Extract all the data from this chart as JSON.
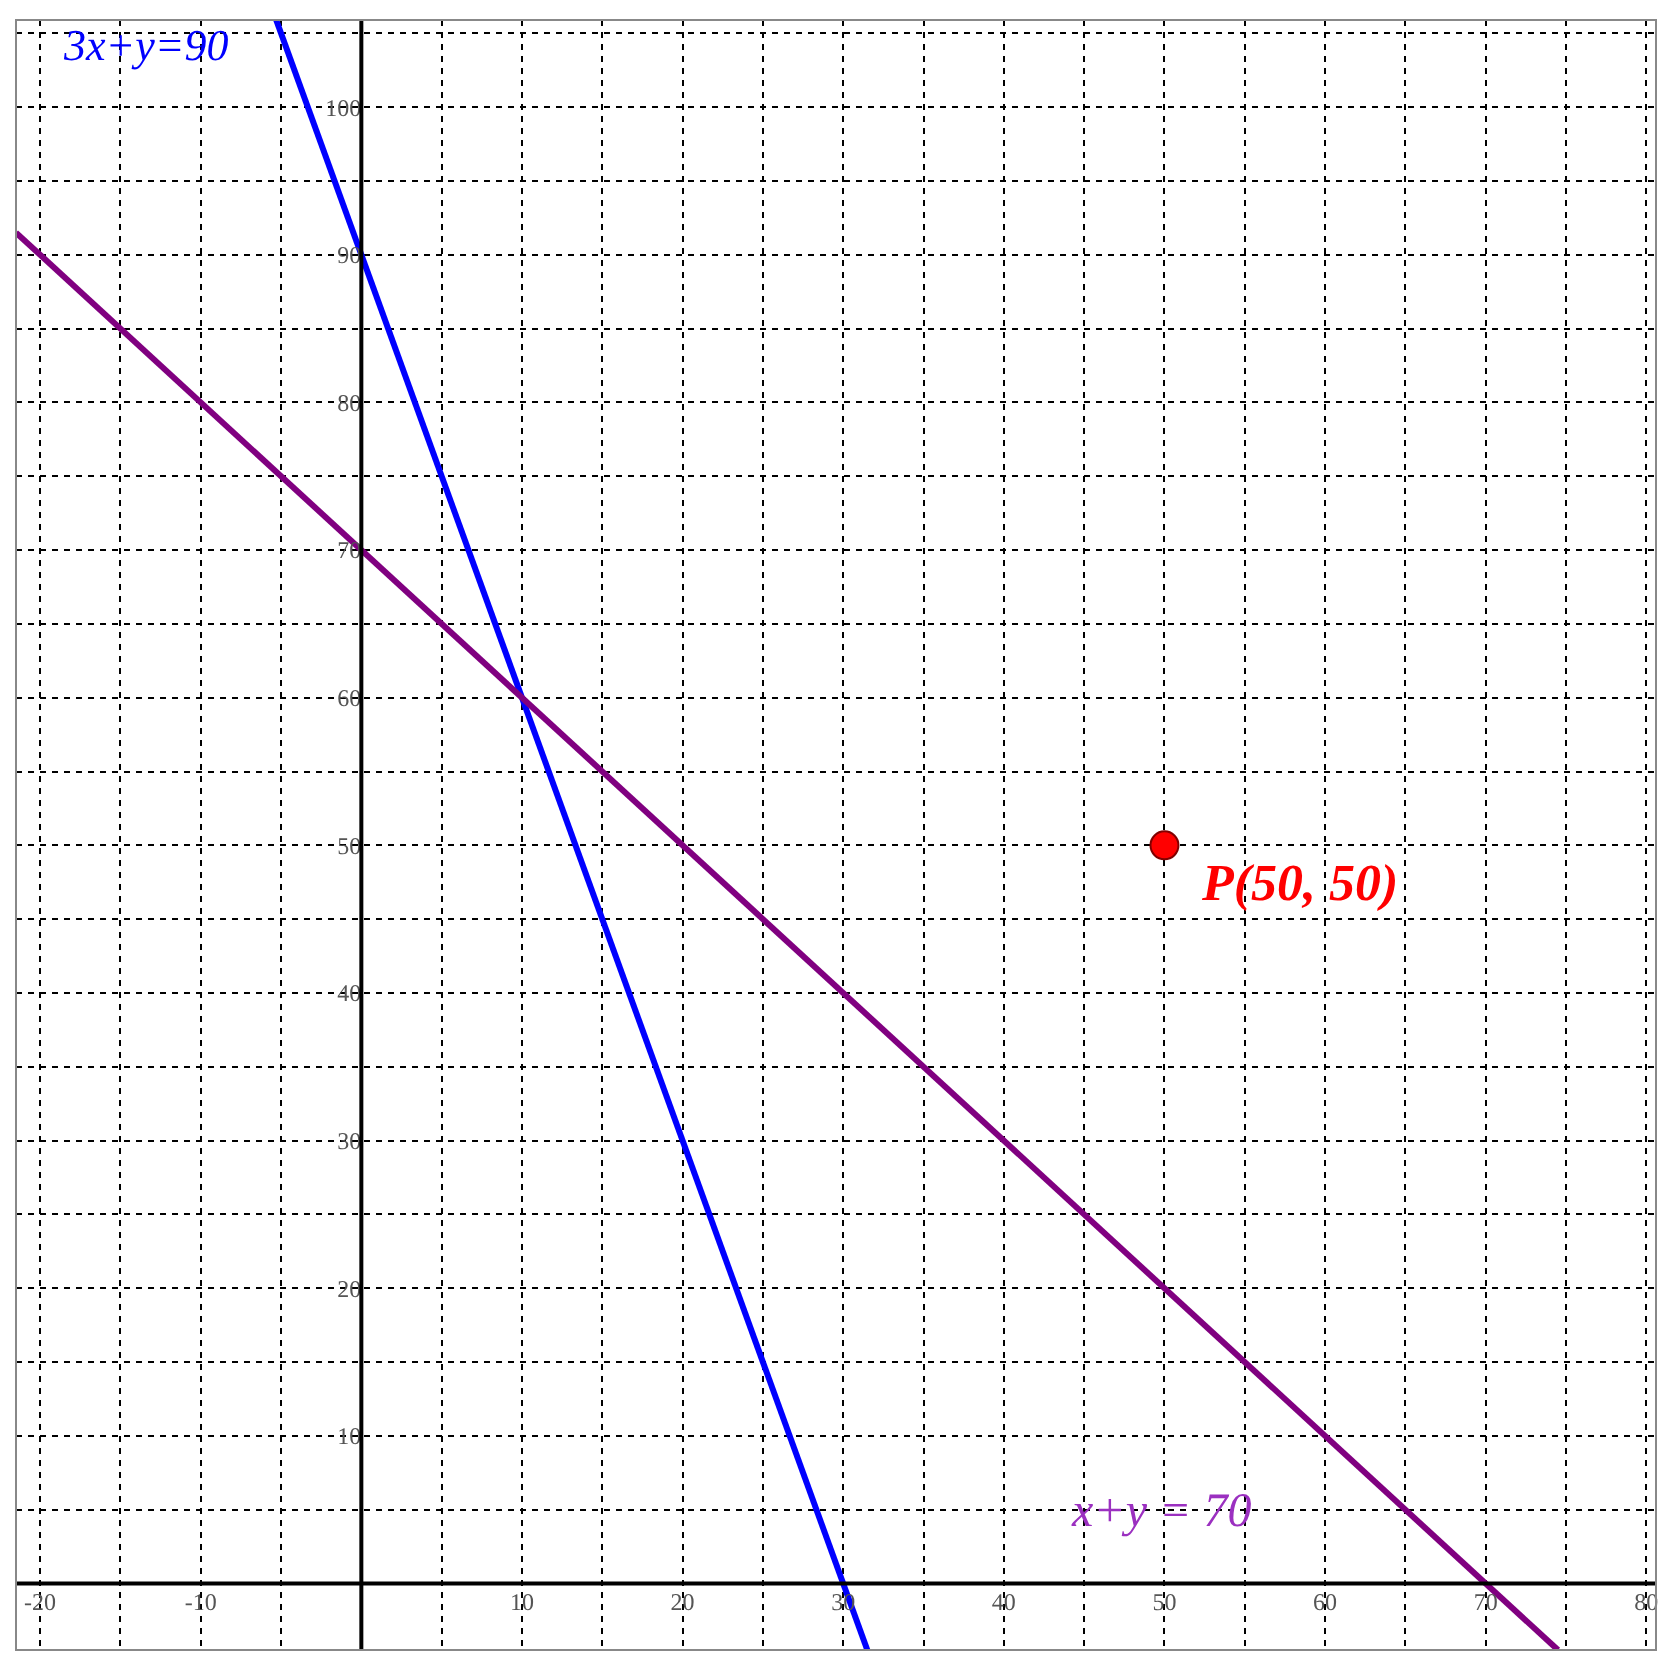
{
  "chart_data": {
    "type": "line",
    "xlim": [
      -21.5,
      80.6
    ],
    "ylim": [
      -4.5,
      105.9
    ],
    "xticks": [
      {
        "value": -20,
        "label": "-20"
      },
      {
        "value": -15,
        "label": null
      },
      {
        "value": -10,
        "label": "-10"
      },
      {
        "value": -5,
        "label": null
      },
      {
        "value": 5,
        "label": null
      },
      {
        "value": 10,
        "label": "10"
      },
      {
        "value": 15,
        "label": null
      },
      {
        "value": 20,
        "label": "20"
      },
      {
        "value": 25,
        "label": null
      },
      {
        "value": 30,
        "label": "30"
      },
      {
        "value": 35,
        "label": null
      },
      {
        "value": 40,
        "label": "40"
      },
      {
        "value": 45,
        "label": null
      },
      {
        "value": 50,
        "label": "50"
      },
      {
        "value": 55,
        "label": null
      },
      {
        "value": 60,
        "label": "60"
      },
      {
        "value": 65,
        "label": null
      },
      {
        "value": 70,
        "label": "70"
      },
      {
        "value": 75,
        "label": null
      },
      {
        "value": 80,
        "label": "80"
      }
    ],
    "yticks": [
      {
        "value": 5,
        "label": null
      },
      10,
      {
        "value": 15,
        "label": null
      },
      20,
      {
        "value": 25,
        "label": null
      },
      30,
      {
        "value": 35,
        "label": null
      },
      40,
      {
        "value": 45,
        "label": null
      },
      50,
      {
        "value": 55,
        "label": null
      },
      60,
      {
        "value": 65,
        "label": null
      },
      70,
      {
        "value": 75,
        "label": null
      },
      80,
      {
        "value": 85,
        "label": null
      },
      90,
      {
        "value": 95,
        "label": null
      },
      100,
      {
        "value": 105,
        "label": null
      }
    ],
    "grid": true,
    "legend": false,
    "series": [
      {
        "x": [
          -5.3,
          31.5
        ],
        "values": [
          105.9,
          -4.5
        ],
        "color": "#0000ff",
        "marker": "none",
        "line_style": "solid"
      },
      {
        "x": [
          -21.5,
          74.5
        ],
        "values": [
          91.5,
          -4.5
        ],
        "color": "#800080",
        "marker": "none",
        "line_style": "solid"
      },
      {
        "type": "scatter",
        "x": [
          50
        ],
        "values": [
          50
        ],
        "color": "#ff0000",
        "marker": "circle"
      }
    ],
    "annotations": [
      "3x+y=90",
      "x+y = 70",
      "P(50, 50)"
    ]
  }
}
